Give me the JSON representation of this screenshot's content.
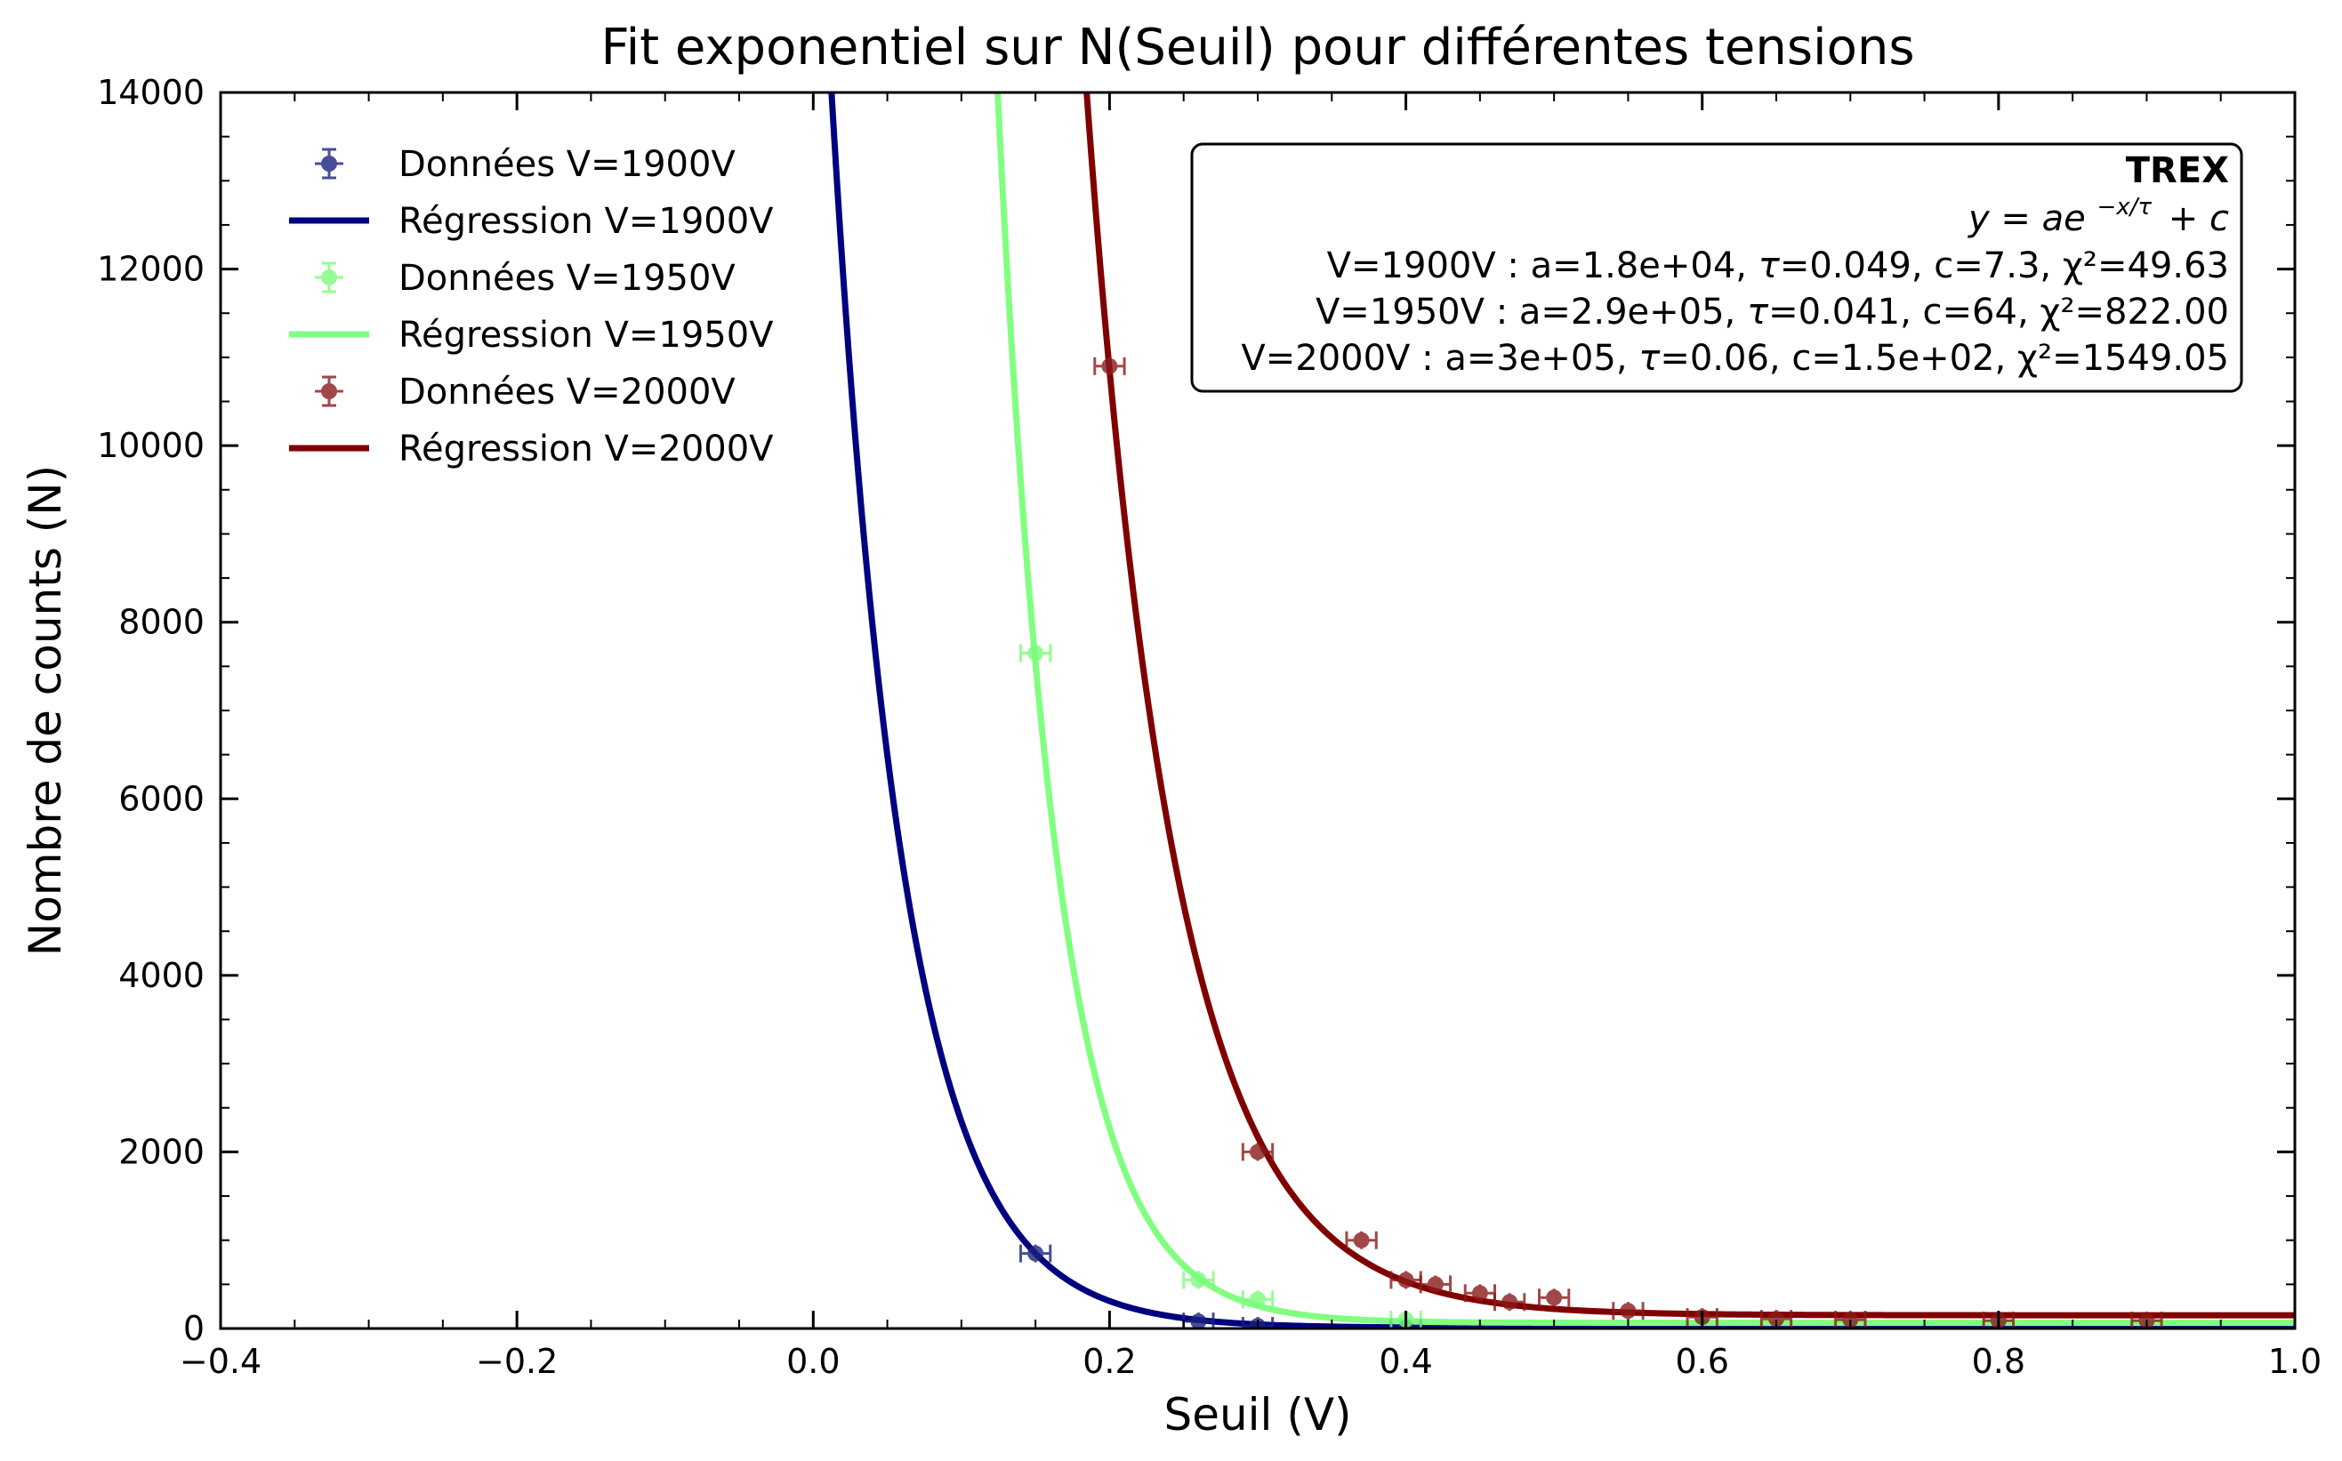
{
  "chart_data": {
    "type": "scatter",
    "title": "Fit exponentiel sur N(Seuil) pour différentes tensions",
    "xlabel": "Seuil (V)",
    "ylabel": "Nombre de counts (N)",
    "xlim": [
      -0.4,
      1.0
    ],
    "ylim": [
      0,
      14000
    ],
    "xticks": [
      -0.4,
      -0.2,
      0.0,
      0.2,
      0.4,
      0.6,
      0.8,
      1.0
    ],
    "xtick_labels": [
      "−0.4",
      "−0.2",
      "0.0",
      "0.2",
      "0.4",
      "0.6",
      "0.8",
      "1.0"
    ],
    "yticks": [
      0,
      2000,
      4000,
      6000,
      8000,
      10000,
      12000,
      14000
    ],
    "ytick_labels": [
      "0",
      "2000",
      "4000",
      "6000",
      "8000",
      "10000",
      "12000",
      "14000"
    ],
    "grid": false,
    "legend_position": "top-left",
    "series": [
      {
        "name": "Données V=1900V",
        "kind": "points",
        "color": "#1a237e",
        "x_err": 0.01,
        "points": [
          [
            0.15,
            850
          ],
          [
            0.26,
            80
          ],
          [
            0.3,
            30
          ],
          [
            0.4,
            8
          ]
        ]
      },
      {
        "name": "Régression V=1900V",
        "kind": "fit",
        "color": "#000080",
        "a": 18000,
        "tau": 0.049,
        "c": 7.3
      },
      {
        "name": "Données V=1950V",
        "kind": "points",
        "color": "#7cfc7c",
        "x_err": 0.01,
        "points": [
          [
            0.15,
            7650
          ],
          [
            0.26,
            550
          ],
          [
            0.3,
            330
          ],
          [
            0.4,
            100
          ]
        ]
      },
      {
        "name": "Régression V=1950V",
        "kind": "fit",
        "color": "#80ff80",
        "a": 290000,
        "tau": 0.041,
        "c": 64
      },
      {
        "name": "Données V=2000V",
        "kind": "points",
        "color": "#8b1a1a",
        "x_err": 0.01,
        "points": [
          [
            0.2,
            10900
          ],
          [
            0.3,
            2000
          ],
          [
            0.37,
            1000
          ],
          [
            0.4,
            550
          ],
          [
            0.42,
            500
          ],
          [
            0.45,
            400
          ],
          [
            0.47,
            300
          ],
          [
            0.5,
            350
          ],
          [
            0.55,
            200
          ],
          [
            0.6,
            130
          ],
          [
            0.65,
            110
          ],
          [
            0.7,
            100
          ],
          [
            0.8,
            90
          ],
          [
            0.9,
            90
          ]
        ]
      },
      {
        "name": "Régression V=2000V",
        "kind": "fit",
        "color": "#800000",
        "a": 300000,
        "tau": 0.06,
        "c": 150
      }
    ],
    "annotation_box": {
      "title": "TREX",
      "formula_lhs": "y",
      "formula_rhs_a": "ae",
      "formula_exponent": "−x/τ",
      "formula_rhs_c": "+ c",
      "lines": [
        {
          "prefix": "V=1900V : a=1.8e+04, ",
          "tau": "τ",
          "suffix": "=0.049, c=7.3, χ²=49.63"
        },
        {
          "prefix": "V=1950V : a=2.9e+05, ",
          "tau": "τ",
          "suffix": "=0.041, c=64, χ²=822.00"
        },
        {
          "prefix": "V=2000V : a=3e+05, ",
          "tau": "τ",
          "suffix": "=0.06, c=1.5e+02, χ²=1549.05"
        }
      ]
    }
  }
}
